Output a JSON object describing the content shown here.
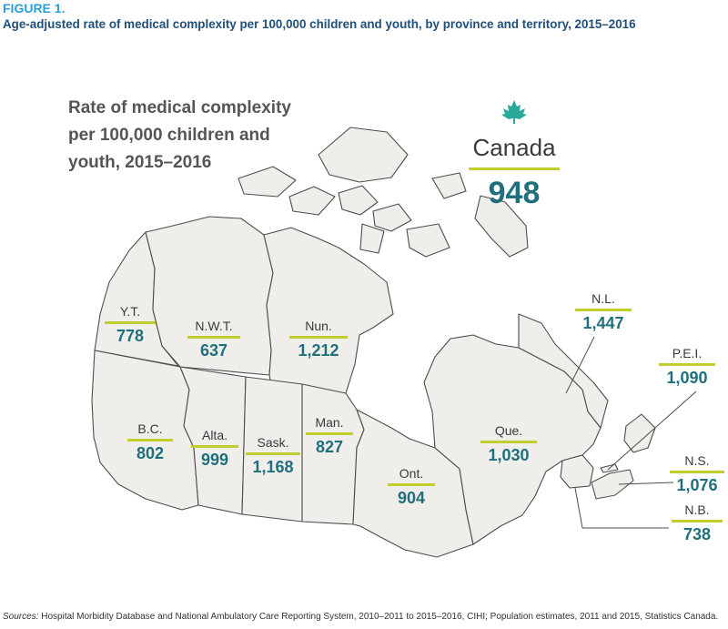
{
  "figure": {
    "label": "FIGURE 1.",
    "title": "Age-adjusted rate of medical complexity per 100,000 children and youth, by province and territory, 2015–2016"
  },
  "map": {
    "title": "Rate of medical complexity per 100,000 children and youth, 2015–2016",
    "fill_color": "#efeeeb",
    "border_color": "#4d4d4d",
    "accent_color": "#c2cd2e",
    "value_color": "#1f6f7c",
    "national": {
      "name": "Canada",
      "value": "948",
      "icon": "maple-leaf-icon",
      "icon_color": "#2aa99a"
    },
    "regions": [
      {
        "abbr": "Y.T.",
        "value": "778"
      },
      {
        "abbr": "N.W.T.",
        "value": "637"
      },
      {
        "abbr": "Nun.",
        "value": "1,212"
      },
      {
        "abbr": "B.C.",
        "value": "802"
      },
      {
        "abbr": "Alta.",
        "value": "999"
      },
      {
        "abbr": "Sask.",
        "value": "1,168"
      },
      {
        "abbr": "Man.",
        "value": "827"
      },
      {
        "abbr": "Ont.",
        "value": "904"
      },
      {
        "abbr": "Que.",
        "value": "1,030"
      },
      {
        "abbr": "N.L.",
        "value": "1,447"
      },
      {
        "abbr": "P.E.I.",
        "value": "1,090"
      },
      {
        "abbr": "N.S.",
        "value": "1,076"
      },
      {
        "abbr": "N.B.",
        "value": "738"
      }
    ]
  },
  "sources": {
    "lead": "Sources:",
    "text": " Hospital Morbidity Database and National Ambulatory Care Reporting System, 2010–2011 to 2015–2016, CIHI; Population estimates, 2011 and 2015, Statistics Canada."
  }
}
